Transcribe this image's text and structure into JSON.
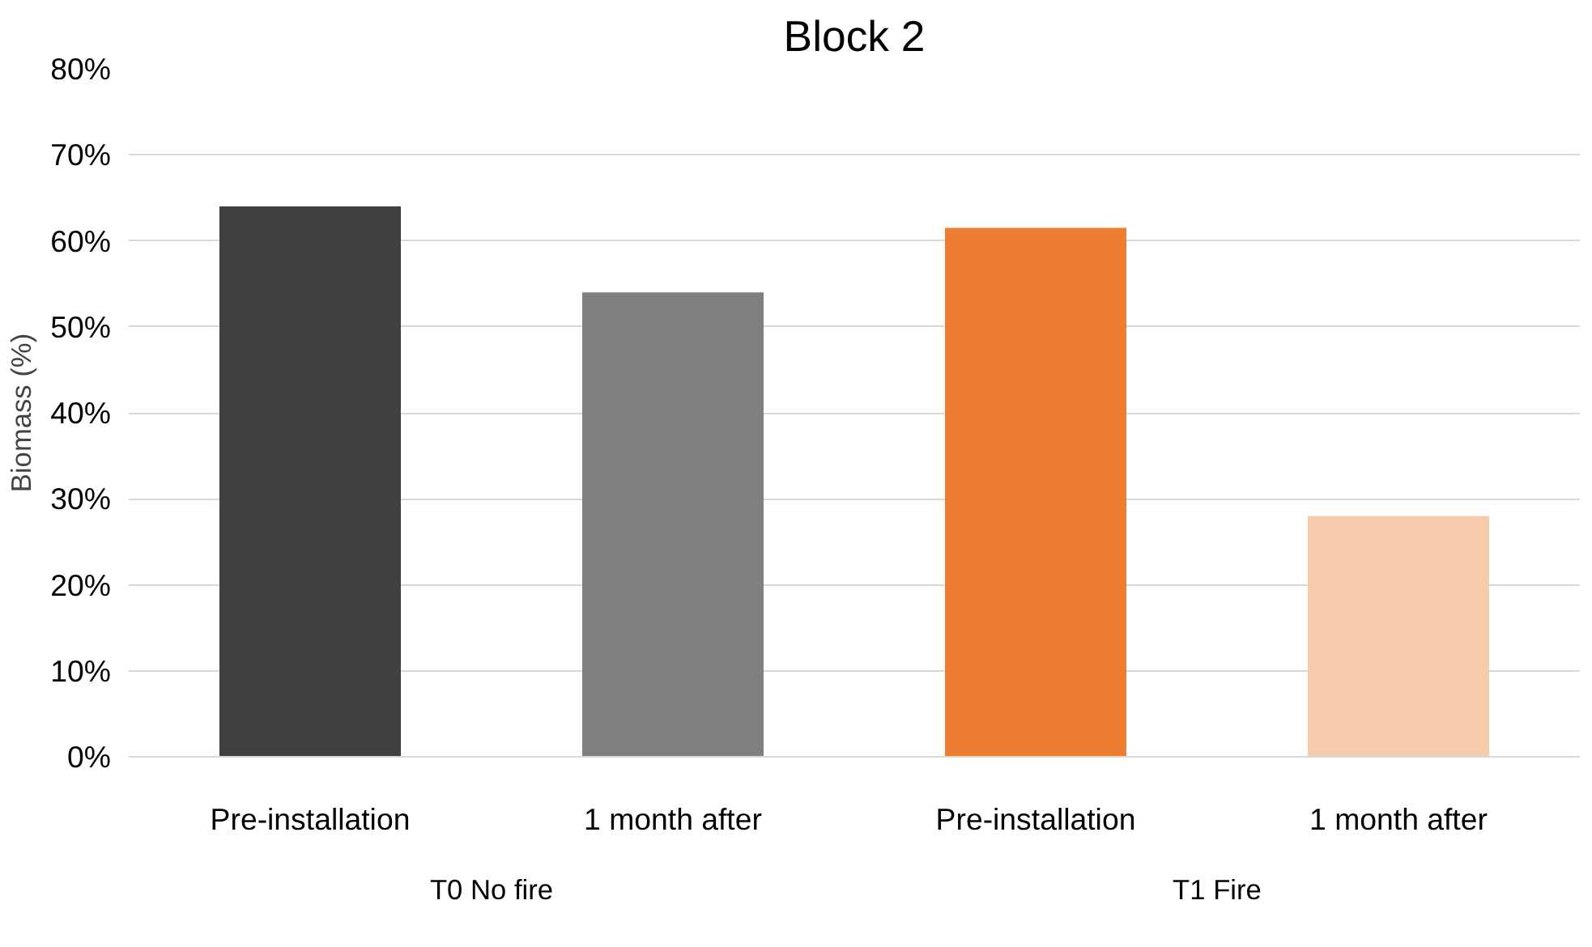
{
  "chart_data": {
    "type": "bar",
    "title": "Block 2",
    "ylabel": "Biomass (%)",
    "categories": [
      "Pre-installation",
      "1 month after",
      "Pre-installation",
      "1 month after"
    ],
    "values": [
      64,
      54,
      61.5,
      28
    ],
    "colors": [
      "#404040",
      "#7f7f7f",
      "#ed7d31",
      "#f8cbad"
    ],
    "ylim": [
      0,
      80
    ],
    "yticks": [
      {
        "value": 0,
        "label": "0%"
      },
      {
        "value": 10,
        "label": "10%"
      },
      {
        "value": 20,
        "label": "20%"
      },
      {
        "value": 30,
        "label": "30%"
      },
      {
        "value": 40,
        "label": "40%"
      },
      {
        "value": 50,
        "label": "50%"
      },
      {
        "value": 60,
        "label": "60%"
      },
      {
        "value": 70,
        "label": "70%"
      },
      {
        "value": 80,
        "label": "80%"
      }
    ],
    "annotations": [
      "T0 No fire",
      "T1 Fire"
    ],
    "grid": "y"
  }
}
